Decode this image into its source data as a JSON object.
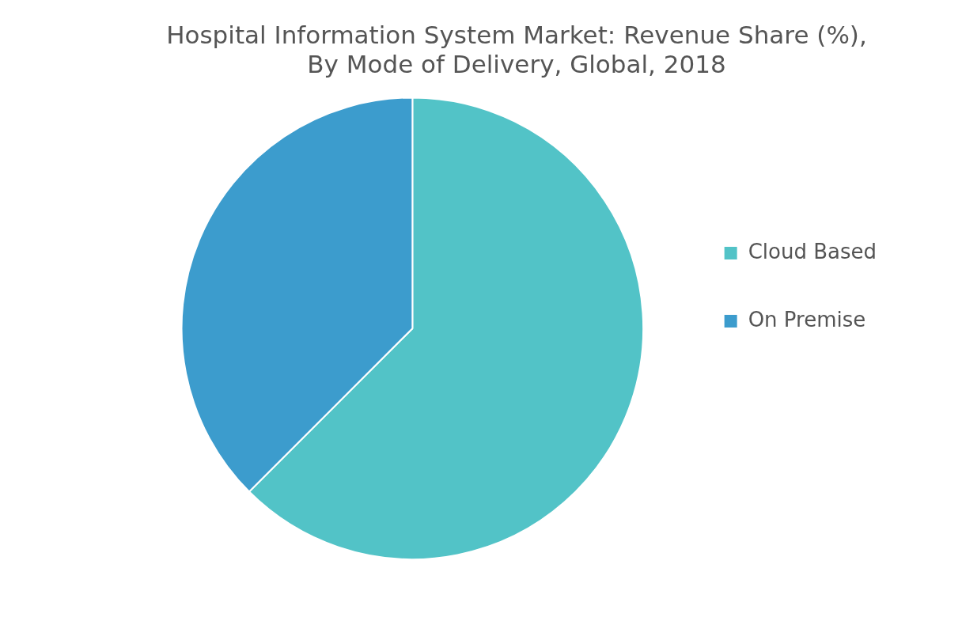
{
  "chart_data": {
    "type": "pie",
    "title": "Hospital Information System Market: Revenue Share (%), By Mode of Delivery, Global, 2018",
    "categories": [
      "Cloud Based",
      "On Premise"
    ],
    "values": [
      62.5,
      37.5
    ],
    "colors": [
      "#52c3c7",
      "#3c9ccd"
    ],
    "legend": "right"
  }
}
